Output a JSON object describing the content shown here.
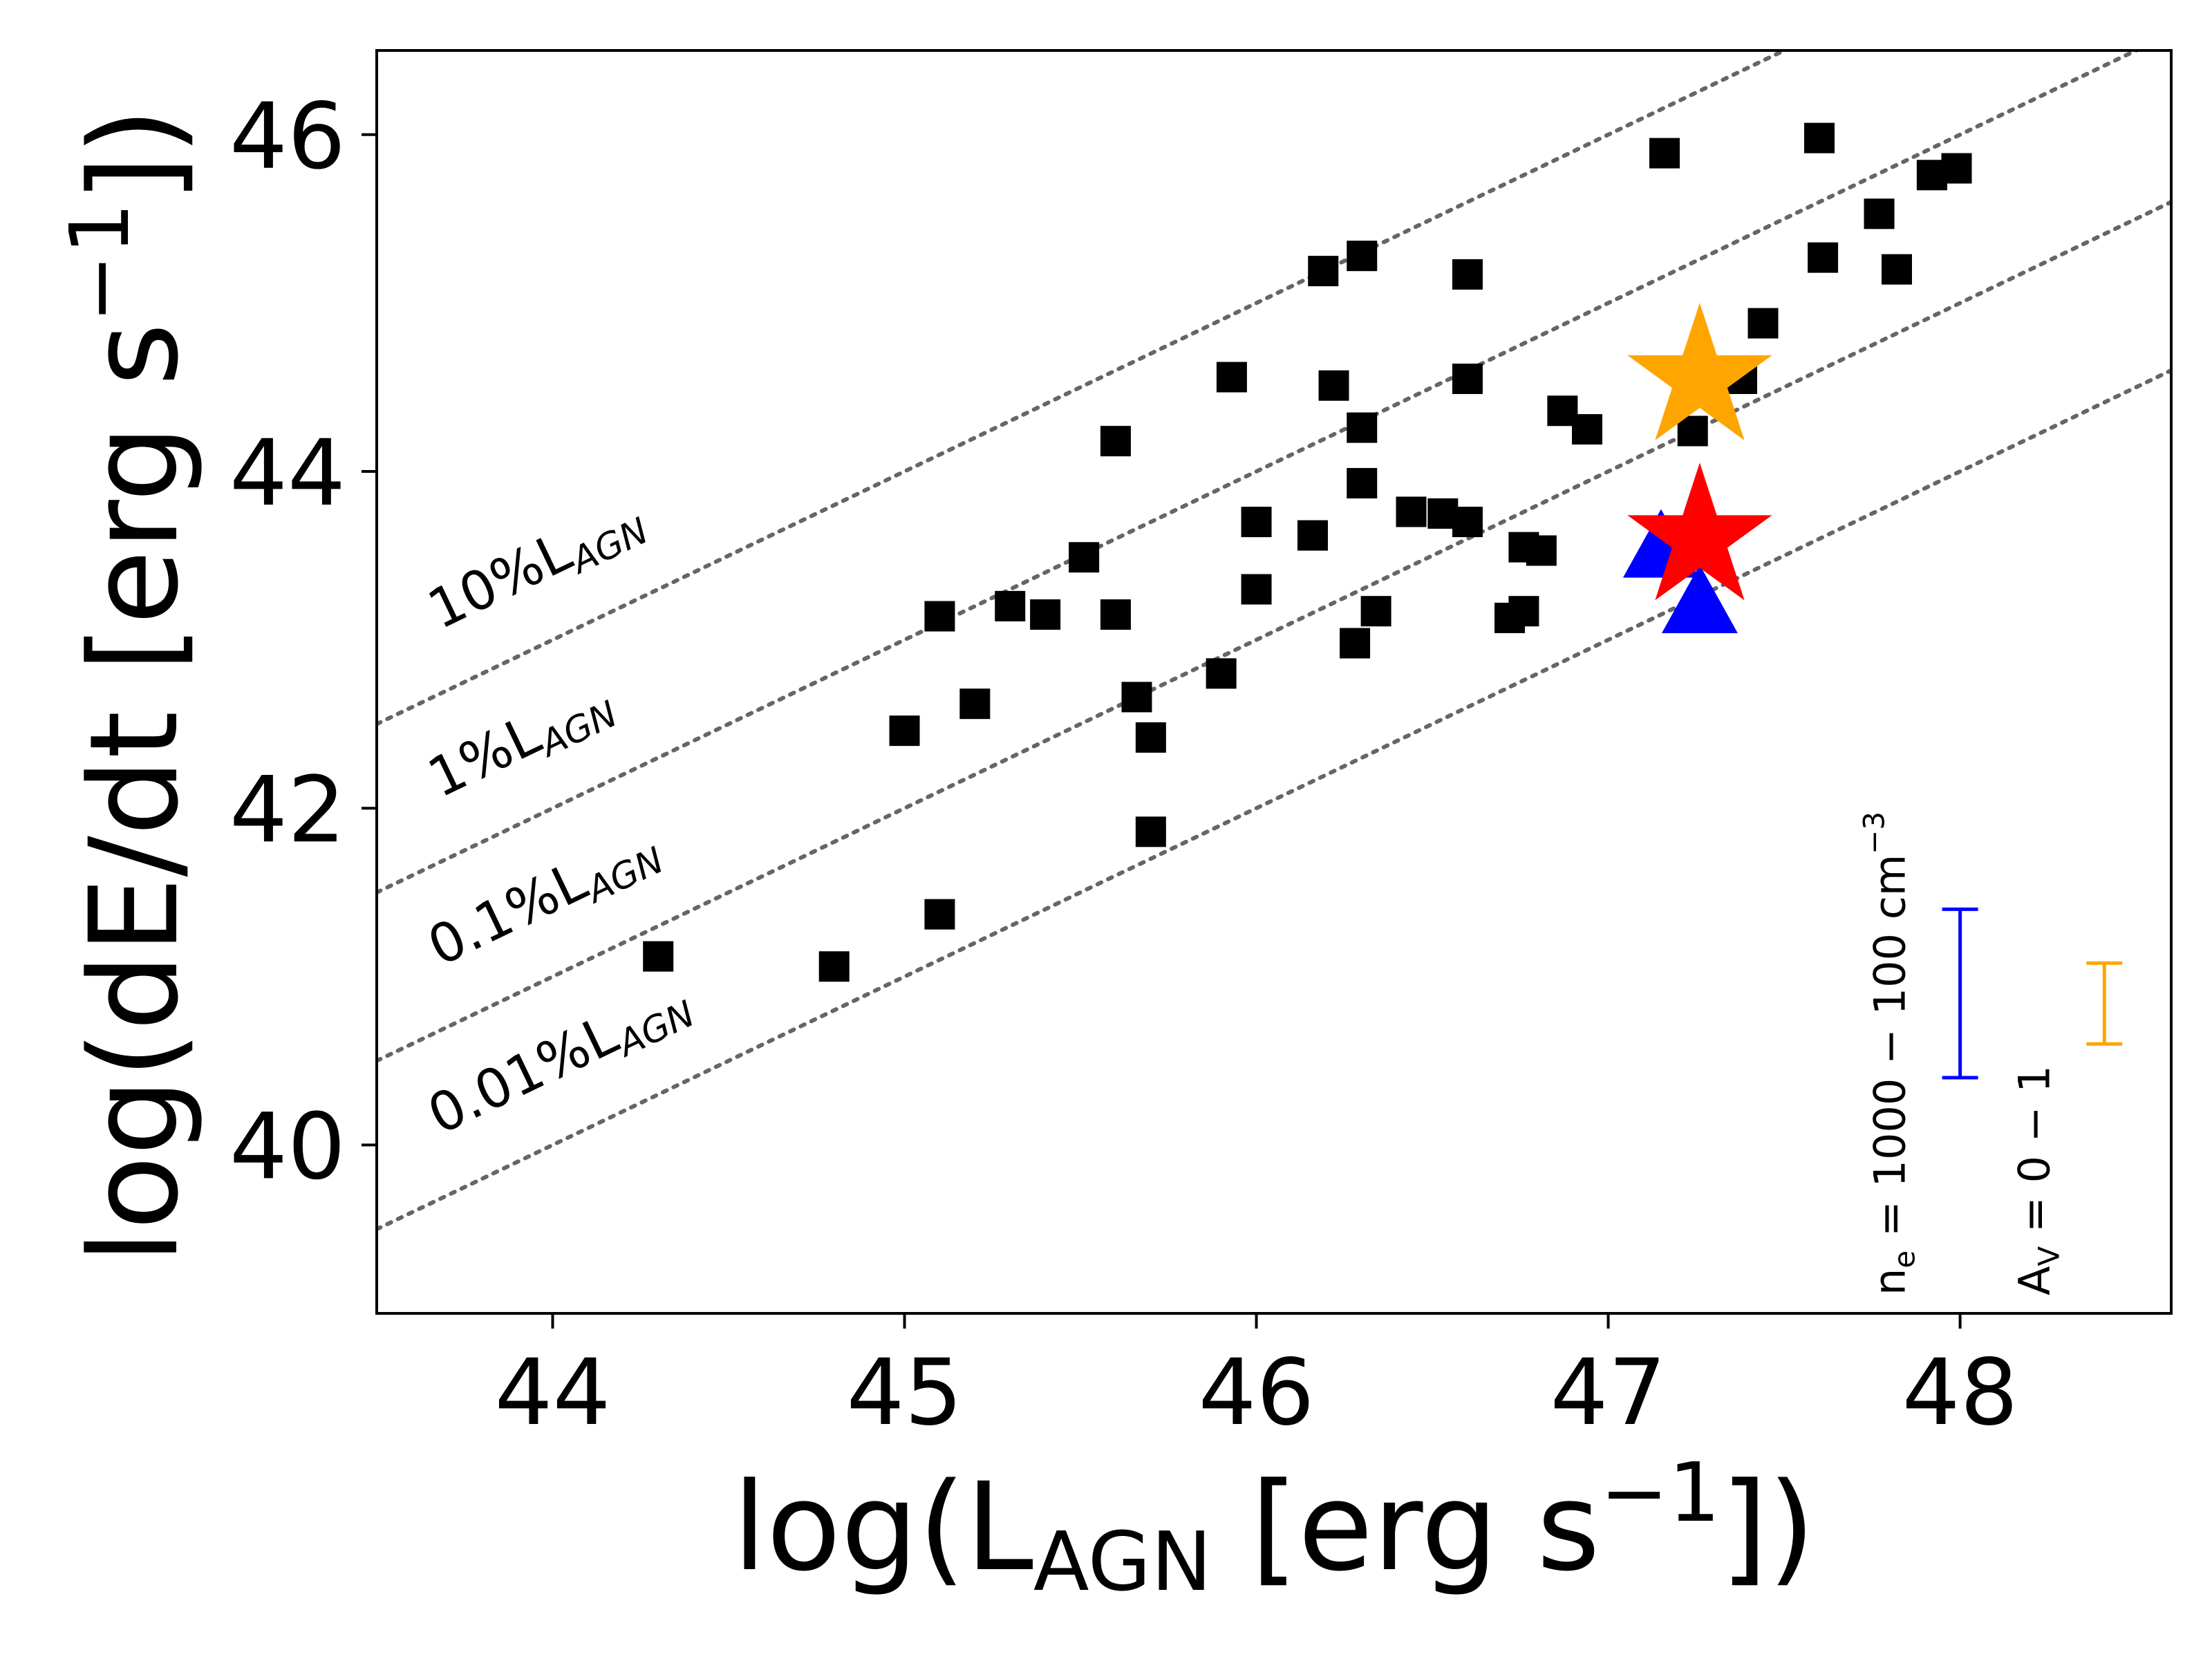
{
  "chart_data": {
    "type": "scatter",
    "xlabel": {
      "main": "log(L",
      "sub": "AGN",
      "rest": " [erg s",
      "sup": "−1",
      "end": "])"
    },
    "ylabel": {
      "main": "log(dE/dt [erg s",
      "sup": "−1",
      "end": "])"
    },
    "xlim": [
      43.5,
      48.6
    ],
    "ylim": [
      39.0,
      46.5
    ],
    "x_ticks": [
      44,
      45,
      46,
      47,
      48
    ],
    "y_ticks": [
      40,
      42,
      44,
      46
    ],
    "x_tick_labels": [
      "44",
      "45",
      "46",
      "47",
      "48"
    ],
    "y_tick_labels": [
      "40",
      "42",
      "44",
      "46"
    ],
    "grid": false,
    "reference_lines": [
      {
        "label_main": "10%L",
        "label_sub": "AGN",
        "offset": -1,
        "color": "#666666",
        "style": "dotted"
      },
      {
        "label_main": "1%L",
        "label_sub": "AGN",
        "offset": -2,
        "color": "#666666",
        "style": "dotted"
      },
      {
        "label_main": "0.1%L",
        "label_sub": "AGN",
        "offset": -3,
        "color": "#666666",
        "style": "dotted"
      },
      {
        "label_main": "0.01%L",
        "label_sub": "AGN",
        "offset": -4,
        "color": "#666666",
        "style": "dotted"
      }
    ],
    "series": [
      {
        "marker": "square",
        "color": "#000000",
        "points": [
          [
            44.3,
            41.12
          ],
          [
            44.8,
            41.06
          ],
          [
            45.0,
            42.46
          ],
          [
            45.1,
            43.14
          ],
          [
            45.1,
            41.37
          ],
          [
            45.2,
            42.62
          ],
          [
            45.3,
            43.2
          ],
          [
            45.4,
            43.15
          ],
          [
            45.51,
            43.49
          ],
          [
            45.6,
            44.18
          ],
          [
            45.6,
            43.15
          ],
          [
            45.66,
            42.66
          ],
          [
            45.7,
            42.42
          ],
          [
            45.7,
            41.86
          ],
          [
            45.9,
            42.8
          ],
          [
            45.93,
            44.56
          ],
          [
            46.0,
            43.7
          ],
          [
            46.0,
            43.3
          ],
          [
            46.16,
            43.62
          ],
          [
            46.19,
            45.19
          ],
          [
            46.22,
            44.51
          ],
          [
            46.28,
            42.98
          ],
          [
            46.3,
            45.28
          ],
          [
            46.3,
            44.26
          ],
          [
            46.3,
            43.93
          ],
          [
            46.34,
            43.17
          ],
          [
            46.44,
            43.76
          ],
          [
            46.53,
            43.75
          ],
          [
            46.6,
            45.17
          ],
          [
            46.6,
            44.55
          ],
          [
            46.6,
            43.7
          ],
          [
            46.72,
            43.13
          ],
          [
            46.76,
            43.55
          ],
          [
            46.76,
            43.17
          ],
          [
            46.81,
            43.53
          ],
          [
            46.87,
            44.36
          ],
          [
            46.94,
            44.25
          ],
          [
            47.16,
            45.89
          ],
          [
            47.24,
            44.24
          ],
          [
            47.38,
            44.55
          ],
          [
            47.44,
            44.88
          ],
          [
            47.6,
            45.98
          ],
          [
            47.61,
            45.27
          ],
          [
            47.77,
            45.53
          ],
          [
            47.82,
            45.2
          ],
          [
            47.92,
            45.76
          ],
          [
            47.99,
            45.8
          ]
        ]
      },
      {
        "marker": "triangle",
        "color": "#0000ff",
        "points": [
          [
            47.15,
            43.55
          ],
          [
            47.26,
            43.22
          ]
        ]
      },
      {
        "marker": "star",
        "color": "#ffa500",
        "points": [
          [
            47.26,
            44.55
          ]
        ]
      },
      {
        "marker": "star",
        "color": "#ff0000",
        "points": [
          [
            47.26,
            43.6
          ]
        ]
      }
    ],
    "error_bars": [
      {
        "color": "#0000ff",
        "x": 48.0,
        "y_low": 40.4,
        "y_high": 41.4,
        "label": {
          "a": "n",
          "a_sub": "e",
          "b": " = 1000 − 100 cm",
          "b_sup": "−3"
        }
      },
      {
        "color": "#ffa500",
        "x": 48.41,
        "y_low": 40.6,
        "y_high": 41.08,
        "label": {
          "a": "A",
          "a_sub": "V",
          "b": " = 0 − 1",
          "b_sup": ""
        }
      }
    ]
  }
}
